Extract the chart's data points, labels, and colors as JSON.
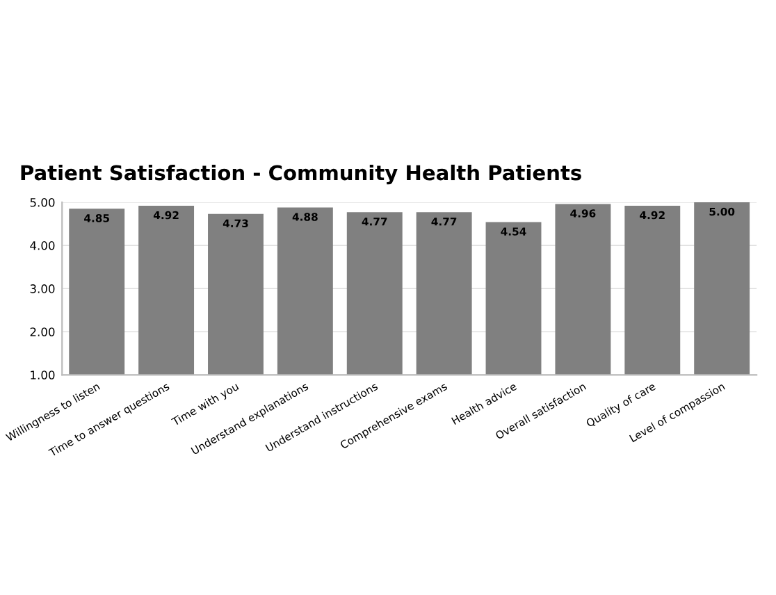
{
  "chart_data": {
    "type": "bar",
    "title": "Patient Satisfaction - Community Health Patients",
    "categories": [
      "Willingness to listen",
      "Time to answer questions",
      "Time with you",
      "Understand explanations",
      "Understand instructions",
      "Comprehensive exams",
      "Health advice",
      "Overall satisfaction",
      "Quality of care",
      "Level of compassion"
    ],
    "values": [
      4.85,
      4.92,
      4.73,
      4.88,
      4.77,
      4.77,
      4.54,
      4.96,
      4.92,
      5.0
    ],
    "value_labels": [
      "4.85",
      "4.92",
      "4.73",
      "4.88",
      "4.77",
      "4.77",
      "4.54",
      "4.96",
      "4.92",
      "5.00"
    ],
    "color": "#808080",
    "ylim": [
      1,
      5
    ],
    "yticks": [
      {
        "value": 1,
        "label": "1.00"
      },
      {
        "value": 2,
        "label": "2.00"
      },
      {
        "value": 3,
        "label": "3.00"
      },
      {
        "value": 4,
        "label": "4.00"
      },
      {
        "value": 5,
        "label": "5.00"
      }
    ],
    "grid": "y",
    "legend": false
  }
}
